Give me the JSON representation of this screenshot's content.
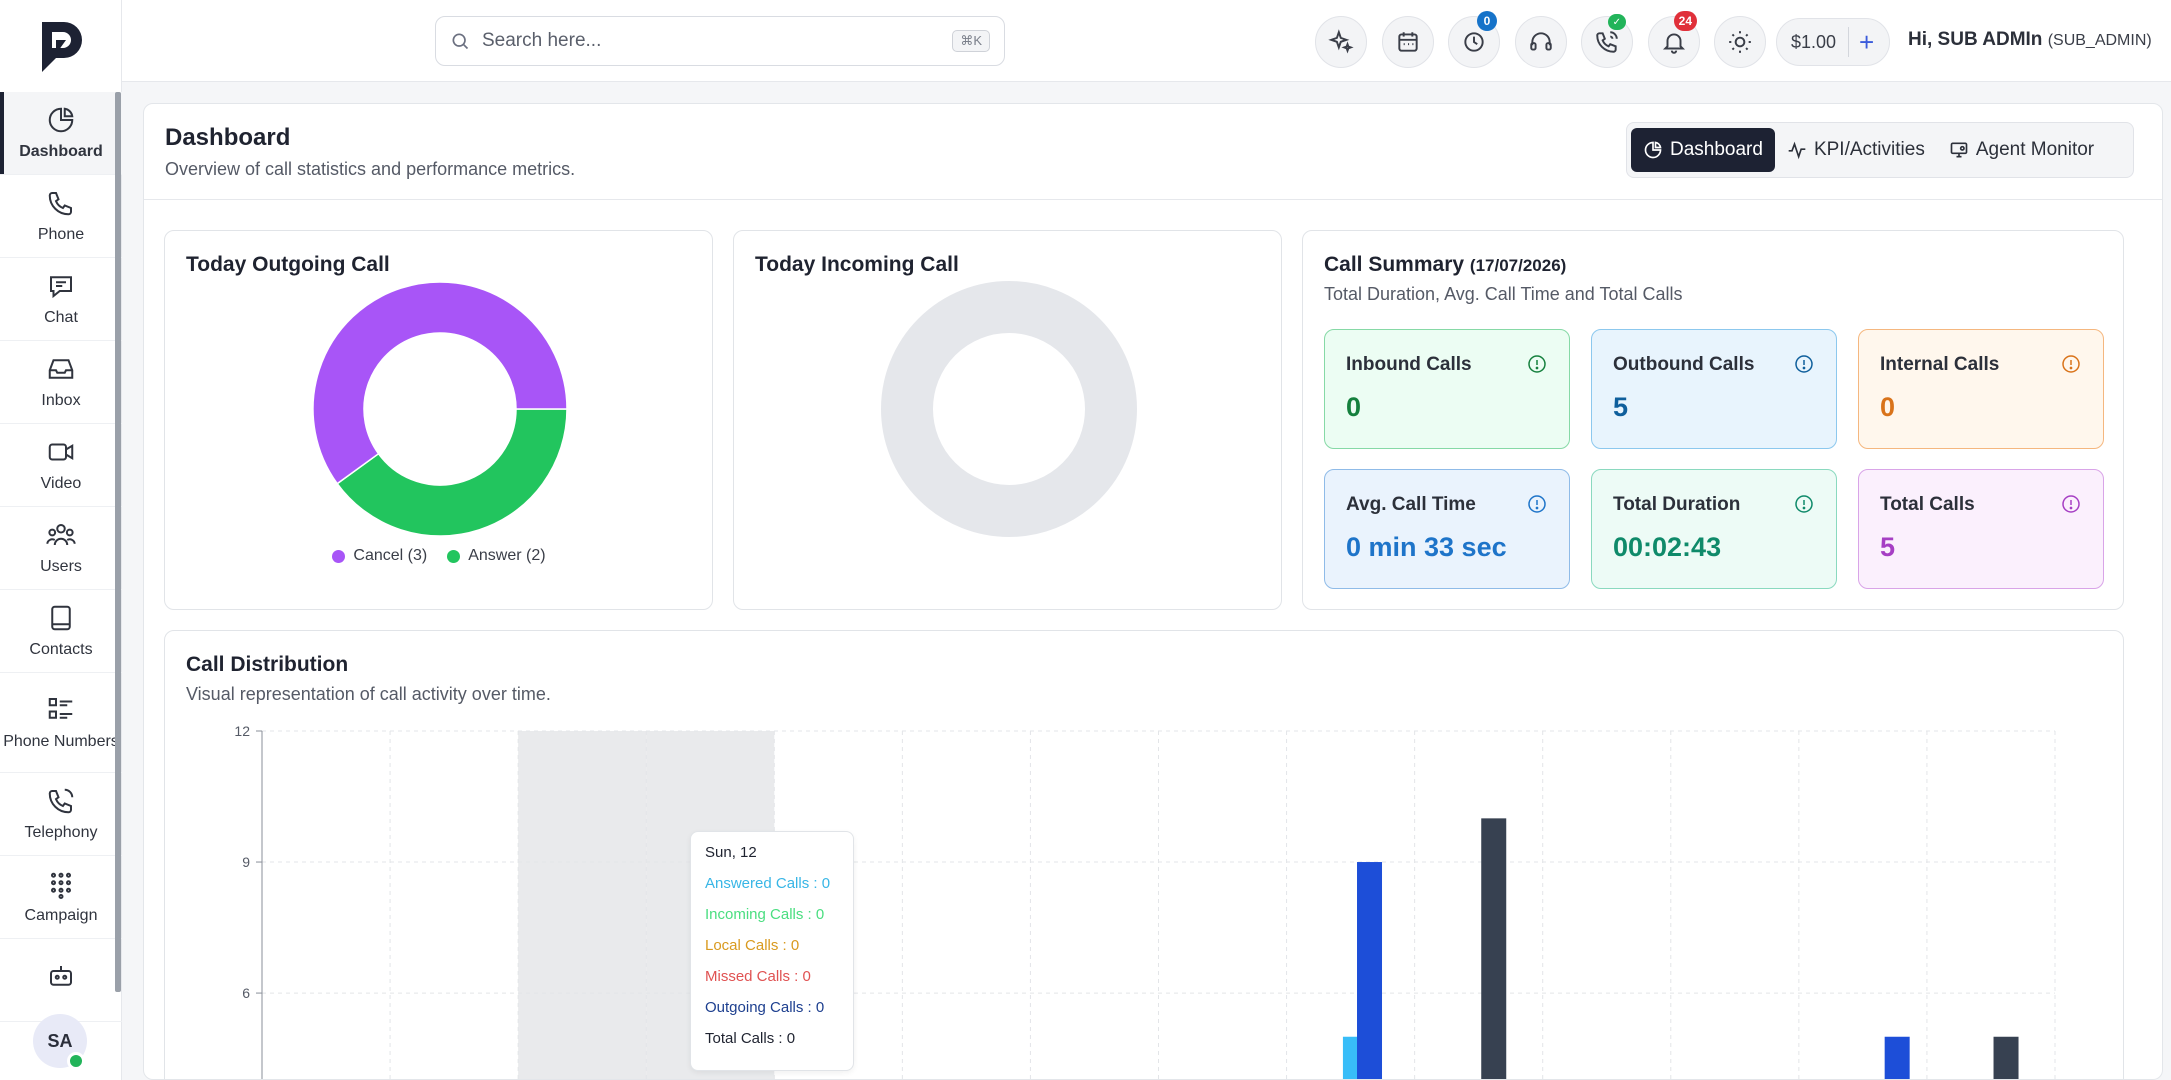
{
  "sidebar": {
    "logo": "logo-icon",
    "items": [
      {
        "label": "Dashboard",
        "icon": "pie-chart-icon",
        "active": true
      },
      {
        "label": "Phone",
        "icon": "phone-icon"
      },
      {
        "label": "Chat",
        "icon": "chat-icon"
      },
      {
        "label": "Inbox",
        "icon": "inbox-icon"
      },
      {
        "label": "Video",
        "icon": "video-icon"
      },
      {
        "label": "Users",
        "icon": "users-icon"
      },
      {
        "label": "Contacts",
        "icon": "contacts-icon"
      },
      {
        "label": "Phone Numbers",
        "icon": "list-icon"
      },
      {
        "label": "Telephony",
        "icon": "telephony-icon"
      },
      {
        "label": "Campaign",
        "icon": "dialpad-icon"
      },
      {
        "label": "",
        "icon": "bot-icon"
      }
    ],
    "avatar": "SA"
  },
  "topbar": {
    "search_placeholder": "Search here...",
    "search_shortcut": "⌘K",
    "icons": [
      "sparkle-icon",
      "calendar-icon",
      "clock-icon",
      "headset-icon",
      "phone-call-icon",
      "bell-icon",
      "sun-icon"
    ],
    "clock_badge": "0",
    "notification_badge": "24",
    "balance": "$1.00",
    "add_label": "+",
    "greeting": "Hi, SUB ADMIn",
    "role": "(SUB_ADMIN)"
  },
  "page": {
    "title": "Dashboard",
    "subtitle": "Overview of call statistics and performance metrics.",
    "tabs": [
      {
        "label": "Dashboard",
        "icon": "pie-chart-icon",
        "active": true
      },
      {
        "label": "KPI/Activities",
        "icon": "activity-icon"
      },
      {
        "label": "Agent Monitor",
        "icon": "monitor-icon"
      }
    ]
  },
  "outgoing": {
    "title": "Today Outgoing Call",
    "slices": [
      {
        "label": "Cancel (3)",
        "value": 3,
        "color": "#a855f7"
      },
      {
        "label": "Answer (2)",
        "value": 2,
        "color": "#22c55e"
      }
    ]
  },
  "incoming": {
    "title": "Today Incoming Call",
    "empty_color": "#e5e7eb"
  },
  "summary": {
    "title": "Call Summary",
    "date": "(17/07/2026)",
    "subtitle": "Total Duration, Avg. Call Time and Total Calls",
    "stats": [
      {
        "label": "Inbound Calls",
        "value": "0",
        "color": "#15803d",
        "bg": "#ecfdf3",
        "border": "#86d9a6"
      },
      {
        "label": "Outbound Calls",
        "value": "5",
        "color": "#0f5f9c",
        "bg": "#e8f4fd",
        "border": "#8cc8ee"
      },
      {
        "label": "Internal Calls",
        "value": "0",
        "color": "#d9731a",
        "bg": "#fff7ed",
        "border": "#f5b77f"
      },
      {
        "label": "Avg. Call Time",
        "value": "0 min 33 sec",
        "color": "#1e74c9",
        "bg": "#eaf3fd",
        "border": "#8fbbe8"
      },
      {
        "label": "Total Duration",
        "value": "00:02:43",
        "color": "#0f8a6a",
        "bg": "#edfbf6",
        "border": "#8ad9bf"
      },
      {
        "label": "Total Calls",
        "value": "5",
        "color": "#a63fc4",
        "bg": "#fbf0fd",
        "border": "#d9a4e8"
      }
    ]
  },
  "distribution": {
    "title": "Call Distribution",
    "subtitle": "Visual representation of call activity over time.",
    "tooltip": {
      "title": "Sun, 12",
      "rows": [
        {
          "label": "Answered Calls : 0",
          "color": "#38b6e6"
        },
        {
          "label": "Incoming Calls : 0",
          "color": "#4ade80"
        },
        {
          "label": "Local Calls : 0",
          "color": "#d99a1f"
        },
        {
          "label": "Missed Calls : 0",
          "color": "#e05252"
        },
        {
          "label": "Outgoing Calls : 0",
          "color": "#1d3f8f"
        },
        {
          "label": "Total Calls : 0",
          "color": "#1f2330"
        }
      ]
    }
  },
  "chart_data": {
    "type": "bar",
    "y_ticks": [
      "12",
      "9",
      "6"
    ],
    "ylim": [
      0,
      12
    ],
    "visible_ylim": [
      3.3,
      12
    ],
    "slot_count": 14,
    "highlighted_slots": [
      2,
      3
    ],
    "series": [
      {
        "color": "#38bdf8"
      },
      {
        "color": "#4ade80"
      },
      {
        "color": "#f59e0b"
      },
      {
        "color": "#ef4444"
      },
      {
        "color": "#1d4ed8"
      },
      {
        "color": "#374151"
      }
    ],
    "bars": [
      {
        "slot": 8,
        "series": 0,
        "value": 5
      },
      {
        "slot": 8,
        "series": 4,
        "value": 9
      },
      {
        "slot": 9,
        "series": 5,
        "value": 10
      },
      {
        "slot": 12,
        "series": 4,
        "value": 5
      },
      {
        "slot": 13,
        "series": 5,
        "value": 5
      }
    ]
  }
}
